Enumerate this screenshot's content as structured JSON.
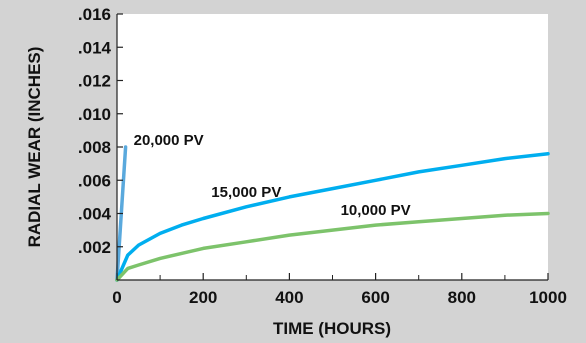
{
  "chart_data": {
    "type": "line",
    "title": "",
    "xlabel": "TIME (HOURS)",
    "ylabel": "RADIAL WEAR (INCHES)",
    "xlim": [
      0,
      1000
    ],
    "ylim": [
      0,
      0.016
    ],
    "x_ticks": [
      0,
      200,
      400,
      600,
      800,
      1000
    ],
    "x_tick_labels": [
      "0",
      "200",
      "400",
      "600",
      "800",
      "1000"
    ],
    "y_ticks": [
      0.002,
      0.004,
      0.006,
      0.008,
      0.01,
      0.012,
      0.014,
      0.016
    ],
    "y_tick_labels": [
      ".002",
      ".004",
      ".006",
      ".008",
      ".010",
      ".012",
      ".014",
      ".016"
    ],
    "grid": false,
    "background": "#d3d3d3",
    "plot_background": "#ffffff",
    "series": [
      {
        "name": "20,000 PV",
        "color": "#5aa9dd",
        "x": [
          0,
          20
        ],
        "y": [
          0,
          0.008
        ]
      },
      {
        "name": "15,000 PV",
        "color": "#00aeef",
        "x": [
          0,
          25,
          50,
          100,
          150,
          200,
          300,
          400,
          500,
          600,
          700,
          800,
          900,
          1000
        ],
        "y": [
          0,
          0.0015,
          0.0021,
          0.0028,
          0.0033,
          0.0037,
          0.0044,
          0.005,
          0.0055,
          0.006,
          0.0065,
          0.0069,
          0.0073,
          0.0076
        ]
      },
      {
        "name": "10,000 PV",
        "color": "#7dc36b",
        "x": [
          0,
          25,
          50,
          100,
          150,
          200,
          300,
          400,
          500,
          600,
          700,
          800,
          900,
          1000
        ],
        "y": [
          0,
          0.0007,
          0.0009,
          0.0013,
          0.0016,
          0.0019,
          0.0023,
          0.0027,
          0.003,
          0.0033,
          0.0035,
          0.0037,
          0.0039,
          0.004
        ]
      }
    ]
  }
}
